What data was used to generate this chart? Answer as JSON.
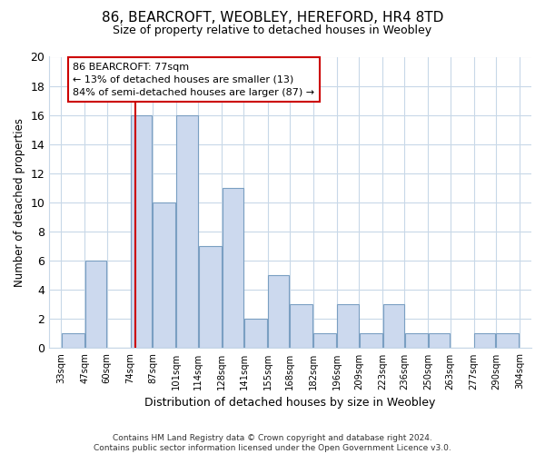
{
  "title": "86, BEARCROFT, WEOBLEY, HEREFORD, HR4 8TD",
  "subtitle": "Size of property relative to detached houses in Weobley",
  "xlabel": "Distribution of detached houses by size in Weobley",
  "ylabel": "Number of detached properties",
  "bin_edges": [
    33,
    47,
    60,
    74,
    87,
    101,
    114,
    128,
    141,
    155,
    168,
    182,
    196,
    209,
    223,
    236,
    250,
    263,
    277,
    290,
    304
  ],
  "bin_labels": [
    "33sqm",
    "47sqm",
    "60sqm",
    "74sqm",
    "87sqm",
    "101sqm",
    "114sqm",
    "128sqm",
    "141sqm",
    "155sqm",
    "168sqm",
    "182sqm",
    "196sqm",
    "209sqm",
    "223sqm",
    "236sqm",
    "250sqm",
    "263sqm",
    "277sqm",
    "290sqm",
    "304sqm"
  ],
  "counts": [
    1,
    6,
    0,
    16,
    10,
    16,
    7,
    11,
    2,
    5,
    3,
    1,
    3,
    1,
    3,
    1,
    1,
    0,
    1,
    1
  ],
  "bar_color": "#ccd9ee",
  "bar_edge_color": "#7a9fc2",
  "property_value": 77,
  "vline_color": "#cc0000",
  "annotation_line1": "86 BEARCROFT: 77sqm",
  "annotation_line2": "← 13% of detached houses are smaller (13)",
  "annotation_line3": "84% of semi-detached houses are larger (87) →",
  "annotation_box_color": "#ffffff",
  "annotation_box_edge": "#cc0000",
  "ylim": [
    0,
    20
  ],
  "yticks": [
    0,
    2,
    4,
    6,
    8,
    10,
    12,
    14,
    16,
    18,
    20
  ],
  "footer": "Contains HM Land Registry data © Crown copyright and database right 2024.\nContains public sector information licensed under the Open Government Licence v3.0.",
  "bg_color": "#ffffff",
  "grid_color": "#c8d8e8"
}
